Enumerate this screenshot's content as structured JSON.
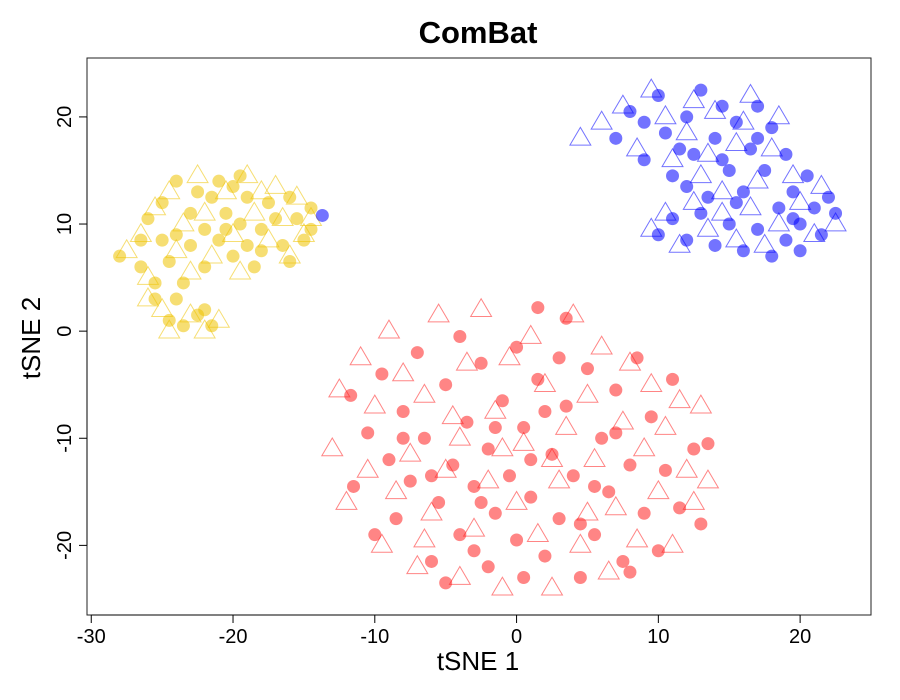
{
  "chart_data": {
    "type": "scatter",
    "title": "ComBat",
    "xlabel": "tSNE 1",
    "ylabel": "tSNE 2",
    "xlim": [
      -30.3,
      25.0
    ],
    "ylim": [
      -26.5,
      25.5
    ],
    "xticks": [
      -30,
      -20,
      -10,
      0,
      10,
      20
    ],
    "yticks": [
      -20,
      -10,
      0,
      10,
      20
    ],
    "xtick_labels": [
      "-30",
      "-20",
      "-10",
      "0",
      "10",
      "20"
    ],
    "ytick_labels": [
      "-20",
      "-10",
      "0",
      "10",
      "20"
    ],
    "grid": false,
    "marker_types": [
      "filled-circle",
      "open-triangle"
    ],
    "series": [
      {
        "color": "#EEC300",
        "cluster": "left",
        "circles": [
          [
            -28.0,
            7.0
          ],
          [
            -26.5,
            6.0
          ],
          [
            -26.0,
            10.5
          ],
          [
            -25.5,
            3.0
          ],
          [
            -25.0,
            8.5
          ],
          [
            -25.0,
            12.0
          ],
          [
            -24.5,
            1.0
          ],
          [
            -24.5,
            6.5
          ],
          [
            -24.0,
            14.0
          ],
          [
            -24.0,
            9.0
          ],
          [
            -23.5,
            4.5
          ],
          [
            -23.5,
            0.5
          ],
          [
            -23.0,
            11.0
          ],
          [
            -23.0,
            8.0
          ],
          [
            -22.5,
            13.0
          ],
          [
            -22.5,
            1.5
          ],
          [
            -22.0,
            9.5
          ],
          [
            -22.0,
            6.0
          ],
          [
            -21.5,
            0.5
          ],
          [
            -21.5,
            12.5
          ],
          [
            -21.0,
            14.0
          ],
          [
            -21.0,
            8.5
          ],
          [
            -20.5,
            11.0
          ],
          [
            -20.0,
            13.5
          ],
          [
            -20.0,
            7.0
          ],
          [
            -19.5,
            14.5
          ],
          [
            -19.5,
            10.0
          ],
          [
            -19.0,
            12.5
          ],
          [
            -19.0,
            8.0
          ],
          [
            -18.5,
            6.0
          ],
          [
            -18.0,
            9.5
          ],
          [
            -17.5,
            12.0
          ],
          [
            -17.0,
            10.5
          ],
          [
            -16.5,
            8.0
          ],
          [
            -16.0,
            12.5
          ],
          [
            -16.0,
            6.5
          ],
          [
            -15.5,
            10.5
          ],
          [
            -15.0,
            8.5
          ],
          [
            -14.5,
            11.5
          ],
          [
            -14.5,
            9.5
          ],
          [
            -26.5,
            8.5
          ],
          [
            -25.5,
            4.5
          ],
          [
            -24.0,
            3.0
          ],
          [
            -22.0,
            2.0
          ],
          [
            -18.0,
            7.5
          ],
          [
            -20.5,
            9.5
          ]
        ],
        "triangles": [
          [
            -27.5,
            7.5
          ],
          [
            -26.5,
            9.0
          ],
          [
            -26.0,
            5.0
          ],
          [
            -25.5,
            11.5
          ],
          [
            -25.0,
            2.0
          ],
          [
            -24.5,
            13.0
          ],
          [
            -24.0,
            7.5
          ],
          [
            -23.5,
            10.0
          ],
          [
            -23.0,
            5.5
          ],
          [
            -22.5,
            14.5
          ],
          [
            -22.0,
            11.0
          ],
          [
            -21.5,
            7.0
          ],
          [
            -21.0,
            1.0
          ],
          [
            -20.5,
            13.0
          ],
          [
            -20.0,
            9.0
          ],
          [
            -19.5,
            5.5
          ],
          [
            -19.0,
            14.5
          ],
          [
            -18.5,
            11.0
          ],
          [
            -18.0,
            13.0
          ],
          [
            -17.5,
            8.5
          ],
          [
            -17.0,
            13.5
          ],
          [
            -16.5,
            10.5
          ],
          [
            -16.0,
            7.0
          ],
          [
            -15.5,
            12.5
          ],
          [
            -15.0,
            9.0
          ],
          [
            -14.5,
            10.5
          ],
          [
            -26.0,
            3.0
          ],
          [
            -24.5,
            0.0
          ],
          [
            -23.0,
            1.5
          ],
          [
            -22.0,
            0.0
          ]
        ]
      },
      {
        "color": "#0000FF",
        "cluster": "upper-right",
        "circles": [
          [
            -13.7,
            10.8
          ],
          [
            7.0,
            18.0
          ],
          [
            8.0,
            20.5
          ],
          [
            9.0,
            16.0
          ],
          [
            10.0,
            22.0
          ],
          [
            10.5,
            18.5
          ],
          [
            11.0,
            14.5
          ],
          [
            12.0,
            20.0
          ],
          [
            12.5,
            16.5
          ],
          [
            13.0,
            22.5
          ],
          [
            13.5,
            12.5
          ],
          [
            14.0,
            18.0
          ],
          [
            14.5,
            21.0
          ],
          [
            15.0,
            15.0
          ],
          [
            15.5,
            19.5
          ],
          [
            16.0,
            13.0
          ],
          [
            16.5,
            17.0
          ],
          [
            17.0,
            21.0
          ],
          [
            17.5,
            15.0
          ],
          [
            18.0,
            19.0
          ],
          [
            18.5,
            11.5
          ],
          [
            19.0,
            16.5
          ],
          [
            19.5,
            13.0
          ],
          [
            20.0,
            10.0
          ],
          [
            20.5,
            14.5
          ],
          [
            21.0,
            11.5
          ],
          [
            21.5,
            9.0
          ],
          [
            22.0,
            12.5
          ],
          [
            22.5,
            11.0
          ],
          [
            10.0,
            9.0
          ],
          [
            11.0,
            10.5
          ],
          [
            12.0,
            8.5
          ],
          [
            13.0,
            11.0
          ],
          [
            14.0,
            8.0
          ],
          [
            15.0,
            10.0
          ],
          [
            16.0,
            7.5
          ],
          [
            17.0,
            9.5
          ],
          [
            18.0,
            7.0
          ],
          [
            19.0,
            8.5
          ],
          [
            20.0,
            7.5
          ],
          [
            9.0,
            19.5
          ],
          [
            11.5,
            17.0
          ],
          [
            14.5,
            16.0
          ],
          [
            17.0,
            18.0
          ],
          [
            19.5,
            10.5
          ],
          [
            12.0,
            13.5
          ],
          [
            15.5,
            12.0
          ]
        ],
        "triangles": [
          [
            4.5,
            18.0
          ],
          [
            6.0,
            19.5
          ],
          [
            7.5,
            21.0
          ],
          [
            8.5,
            17.0
          ],
          [
            9.5,
            22.5
          ],
          [
            10.5,
            20.0
          ],
          [
            11.0,
            16.0
          ],
          [
            12.0,
            18.5
          ],
          [
            13.0,
            14.5
          ],
          [
            14.0,
            20.5
          ],
          [
            14.5,
            13.0
          ],
          [
            15.5,
            17.5
          ],
          [
            16.5,
            22.0
          ],
          [
            17.0,
            14.0
          ],
          [
            18.0,
            17.0
          ],
          [
            18.5,
            20.0
          ],
          [
            19.5,
            14.5
          ],
          [
            20.0,
            12.0
          ],
          [
            21.0,
            9.0
          ],
          [
            21.5,
            13.5
          ],
          [
            22.5,
            10.0
          ],
          [
            9.5,
            9.5
          ],
          [
            10.5,
            11.0
          ],
          [
            11.5,
            8.0
          ],
          [
            12.5,
            12.0
          ],
          [
            13.5,
            9.5
          ],
          [
            14.5,
            11.0
          ],
          [
            15.5,
            8.5
          ],
          [
            16.5,
            11.5
          ],
          [
            17.5,
            8.0
          ],
          [
            18.5,
            10.0
          ],
          [
            12.5,
            21.5
          ],
          [
            16.0,
            19.5
          ],
          [
            13.5,
            16.5
          ]
        ]
      },
      {
        "color": "#FF2020",
        "cluster": "bottom-center",
        "circles": [
          [
            -11.7,
            -6.0
          ],
          [
            -11.5,
            -14.5
          ],
          [
            -10.5,
            -9.5
          ],
          [
            -10.0,
            -19.0
          ],
          [
            -9.5,
            -4.0
          ],
          [
            -9.0,
            -12.0
          ],
          [
            -8.5,
            -17.5
          ],
          [
            -8.0,
            -7.5
          ],
          [
            -7.5,
            -14.0
          ],
          [
            -7.0,
            -2.0
          ],
          [
            -6.5,
            -10.0
          ],
          [
            -6.0,
            -21.5
          ],
          [
            -5.5,
            -16.0
          ],
          [
            -5.0,
            -5.0
          ],
          [
            -4.5,
            -12.5
          ],
          [
            -4.0,
            -0.5
          ],
          [
            -4.0,
            -19.0
          ],
          [
            -3.5,
            -8.5
          ],
          [
            -3.0,
            -14.5
          ],
          [
            -2.5,
            -3.0
          ],
          [
            -2.0,
            -22.0
          ],
          [
            -2.0,
            -11.0
          ],
          [
            -1.5,
            -17.0
          ],
          [
            -1.0,
            -6.5
          ],
          [
            -0.5,
            -13.5
          ],
          [
            0.0,
            -1.5
          ],
          [
            0.0,
            -19.5
          ],
          [
            0.5,
            -9.0
          ],
          [
            1.0,
            -15.5
          ],
          [
            1.5,
            2.2
          ],
          [
            1.5,
            -4.5
          ],
          [
            2.0,
            -21.0
          ],
          [
            2.5,
            -11.5
          ],
          [
            3.0,
            -17.5
          ],
          [
            3.5,
            1.2
          ],
          [
            3.5,
            -7.0
          ],
          [
            4.0,
            -13.5
          ],
          [
            4.5,
            -23.0
          ],
          [
            5.0,
            -3.5
          ],
          [
            5.5,
            -19.0
          ],
          [
            6.0,
            -10.0
          ],
          [
            6.5,
            -15.0
          ],
          [
            7.0,
            -5.5
          ],
          [
            7.5,
            -21.5
          ],
          [
            8.0,
            -12.5
          ],
          [
            8.5,
            -2.5
          ],
          [
            9.0,
            -17.0
          ],
          [
            9.5,
            -8.0
          ],
          [
            10.0,
            -20.5
          ],
          [
            10.5,
            -13.0
          ],
          [
            11.0,
            -4.5
          ],
          [
            11.5,
            -16.5
          ],
          [
            12.5,
            -11.0
          ],
          [
            13.0,
            -18.0
          ],
          [
            13.5,
            -10.5
          ],
          [
            0.5,
            -23.0
          ],
          [
            -3.0,
            -20.5
          ],
          [
            -5.0,
            -23.5
          ],
          [
            8.0,
            -22.5
          ],
          [
            -1.5,
            -9.0
          ],
          [
            3.0,
            -2.5
          ],
          [
            5.5,
            -14.5
          ],
          [
            -6.0,
            -13.5
          ],
          [
            1.0,
            -12.0
          ],
          [
            7.0,
            -9.5
          ],
          [
            -8.0,
            -10.0
          ],
          [
            2.0,
            -7.5
          ],
          [
            -2.5,
            -16.0
          ],
          [
            4.5,
            -18.0
          ]
        ],
        "triangles": [
          [
            -13.0,
            -11.0
          ],
          [
            -12.5,
            -5.5
          ],
          [
            -12.0,
            -16.0
          ],
          [
            -11.0,
            -2.5
          ],
          [
            -10.5,
            -13.0
          ],
          [
            -10.0,
            -7.0
          ],
          [
            -9.5,
            -20.0
          ],
          [
            -9.0,
            0.0
          ],
          [
            -8.5,
            -15.0
          ],
          [
            -8.0,
            -4.0
          ],
          [
            -7.5,
            -11.5
          ],
          [
            -7.0,
            -22.0
          ],
          [
            -6.5,
            -6.0
          ],
          [
            -6.0,
            -17.0
          ],
          [
            -5.5,
            1.5
          ],
          [
            -5.0,
            -13.0
          ],
          [
            -4.5,
            -8.0
          ],
          [
            -4.0,
            -23.0
          ],
          [
            -3.5,
            -3.0
          ],
          [
            -3.0,
            -18.5
          ],
          [
            -2.5,
            2.0
          ],
          [
            -2.0,
            -14.0
          ],
          [
            -1.5,
            -7.5
          ],
          [
            -1.0,
            -24.0
          ],
          [
            -0.5,
            -2.5
          ],
          [
            0.0,
            -16.0
          ],
          [
            0.5,
            -10.5
          ],
          [
            1.0,
            -0.5
          ],
          [
            1.5,
            -19.0
          ],
          [
            2.0,
            -5.0
          ],
          [
            2.5,
            -24.0
          ],
          [
            3.0,
            -14.0
          ],
          [
            3.5,
            -9.0
          ],
          [
            4.0,
            1.5
          ],
          [
            4.5,
            -20.0
          ],
          [
            5.0,
            -6.0
          ],
          [
            5.5,
            -12.0
          ],
          [
            6.0,
            -1.5
          ],
          [
            6.5,
            -22.5
          ],
          [
            7.0,
            -16.5
          ],
          [
            7.5,
            -8.5
          ],
          [
            8.0,
            -3.0
          ],
          [
            8.5,
            -19.5
          ],
          [
            9.0,
            -11.0
          ],
          [
            9.5,
            -5.0
          ],
          [
            10.0,
            -15.0
          ],
          [
            10.5,
            -9.0
          ],
          [
            11.0,
            -20.0
          ],
          [
            11.5,
            -6.5
          ],
          [
            12.0,
            -13.0
          ],
          [
            12.5,
            -16.0
          ],
          [
            13.0,
            -7.0
          ],
          [
            13.5,
            -14.0
          ],
          [
            -1.0,
            -11.0
          ],
          [
            2.5,
            -12.0
          ],
          [
            -4.0,
            -10.0
          ],
          [
            5.0,
            -17.0
          ],
          [
            -6.5,
            -19.5
          ]
        ]
      }
    ]
  }
}
